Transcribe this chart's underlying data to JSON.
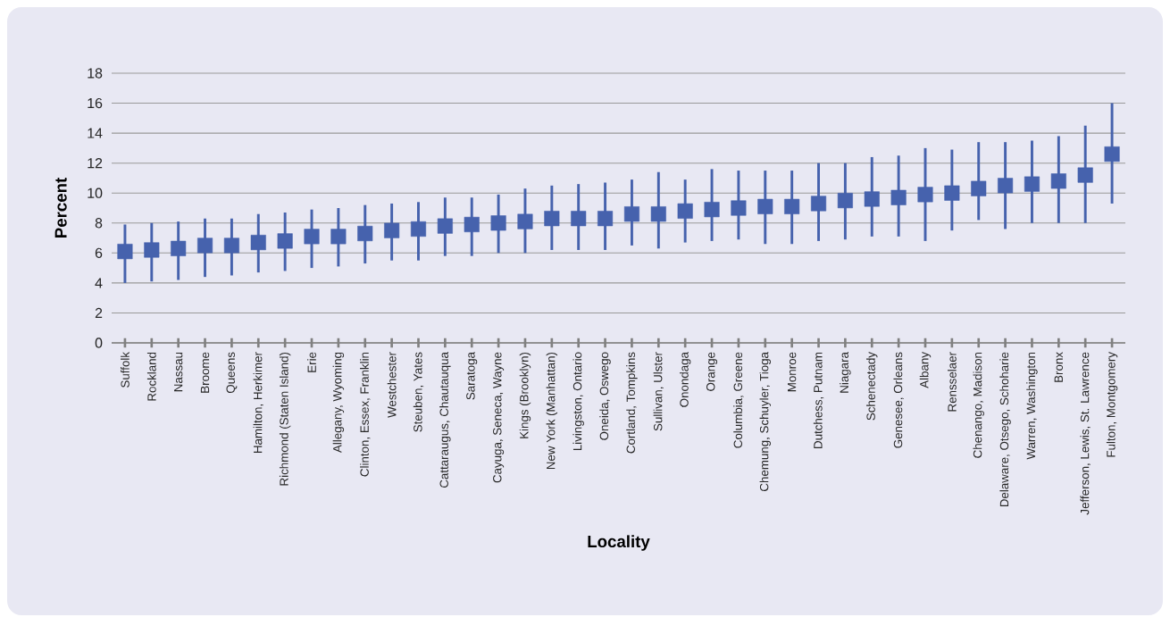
{
  "chart_data": {
    "type": "scatter",
    "xlabel": "Locality",
    "ylabel": "Percent",
    "categories": [
      "Suffolk",
      "Rockland",
      "Nassau",
      "Broome",
      "Queens",
      "Hamilton, Herkimer",
      "Richmond (Staten Island)",
      "Erie",
      "Allegany, Wyoming",
      "Clinton, Essex, Franklin",
      "Westchester",
      "Steuben, Yates",
      "Cattaraugus, Chautauqua",
      "Saratoga",
      "Cayuga, Seneca, Wayne",
      "Kings (Brooklyn)",
      "New York (Manhattan)",
      "Livingston, Ontario",
      "Oneida, Oswego",
      "Cortland, Tompkins",
      "Sullivan, Ulster",
      "Onondaga",
      "Orange",
      "Columbia, Greene",
      "Chemung, Schuyler, Tioga",
      "Monroe",
      "Dutchess, Putnam",
      "Niagara",
      "Schenectady",
      "Genesee, Orleans",
      "Albany",
      "Rensselaer",
      "Chenango, Madison",
      "Delaware, Otsego, Schoharie",
      "Warren, Washington",
      "Bronx",
      "Jefferson, Lewis, St. Lawrence",
      "Fulton, Montgomery"
    ],
    "series": [
      {
        "color": "#4662ad",
        "marker": "square",
        "values": [
          6.1,
          6.2,
          6.3,
          6.5,
          6.5,
          6.7,
          6.8,
          7.1,
          7.1,
          7.3,
          7.5,
          7.6,
          7.8,
          7.9,
          8.0,
          8.1,
          8.3,
          8.3,
          8.3,
          8.6,
          8.6,
          8.8,
          8.9,
          9.0,
          9.1,
          9.1,
          9.3,
          9.5,
          9.6,
          9.7,
          9.9,
          10.0,
          10.3,
          10.5,
          10.6,
          10.8,
          11.2,
          12.6
        ],
        "errors": [
          [
            4.0,
            7.9
          ],
          [
            4.1,
            8.0
          ],
          [
            4.2,
            8.1
          ],
          [
            4.4,
            8.3
          ],
          [
            4.5,
            8.3
          ],
          [
            4.7,
            8.6
          ],
          [
            4.8,
            8.7
          ],
          [
            5.0,
            8.9
          ],
          [
            5.1,
            9.0
          ],
          [
            5.3,
            9.2
          ],
          [
            5.5,
            9.3
          ],
          [
            5.5,
            9.4
          ],
          [
            5.8,
            9.7
          ],
          [
            5.8,
            9.7
          ],
          [
            6.0,
            9.9
          ],
          [
            6.0,
            10.3
          ],
          [
            6.2,
            10.5
          ],
          [
            6.2,
            10.6
          ],
          [
            6.2,
            10.7
          ],
          [
            6.5,
            10.9
          ],
          [
            6.3,
            11.4
          ],
          [
            6.7,
            10.9
          ],
          [
            6.8,
            11.6
          ],
          [
            6.9,
            11.5
          ],
          [
            6.6,
            11.5
          ],
          [
            6.6,
            11.5
          ],
          [
            6.8,
            12.0
          ],
          [
            6.9,
            12.0
          ],
          [
            7.1,
            12.4
          ],
          [
            7.1,
            12.5
          ],
          [
            6.8,
            13.0
          ],
          [
            7.5,
            12.9
          ],
          [
            8.2,
            13.4
          ],
          [
            7.6,
            13.4
          ],
          [
            8.0,
            13.5
          ],
          [
            8.0,
            13.8
          ],
          [
            8.0,
            14.5
          ],
          [
            9.3,
            16.0
          ]
        ]
      }
    ],
    "ylim": [
      0,
      18
    ],
    "yticks": [
      0,
      2,
      4,
      6,
      8,
      10,
      12,
      14,
      16,
      18
    ],
    "grid": "y"
  }
}
